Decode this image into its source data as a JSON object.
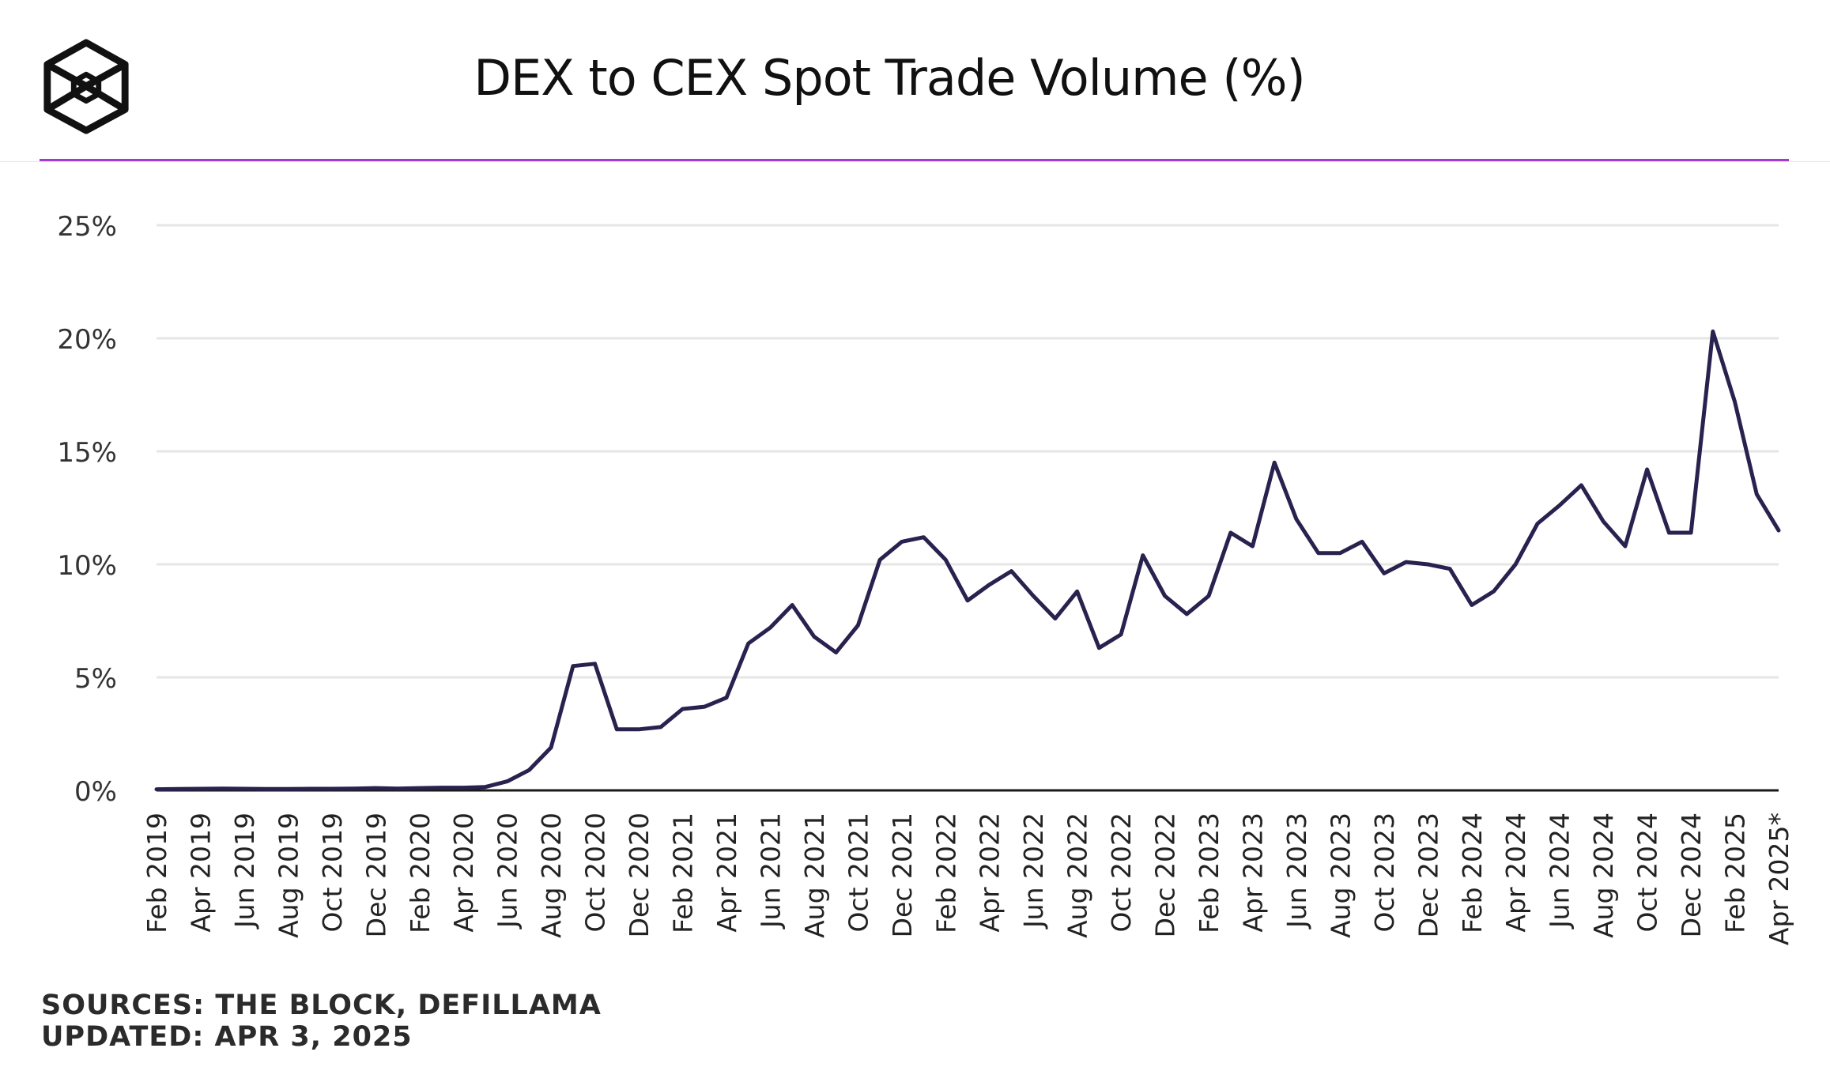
{
  "header": {
    "logo": "the-block-cube-logo",
    "title": "DEX to CEX Spot Trade Volume (%)"
  },
  "colors": {
    "accent_rule": "#a23bd3",
    "series_line": "#28224f",
    "grid": "#e6e6e6",
    "axis": "#1a1a1a"
  },
  "chart_data": {
    "type": "line",
    "title": "DEX to CEX Spot Trade Volume (%)",
    "xlabel": "",
    "ylabel": "",
    "ylim": [
      0,
      25
    ],
    "yticks": [
      0,
      5,
      10,
      15,
      20,
      25
    ],
    "ytick_labels": [
      "0%",
      "5%",
      "10%",
      "15%",
      "20%",
      "25%"
    ],
    "x": [
      "Feb 2019",
      "Mar 2019",
      "Apr 2019",
      "May 2019",
      "Jun 2019",
      "Jul 2019",
      "Aug 2019",
      "Sep 2019",
      "Oct 2019",
      "Nov 2019",
      "Dec 2019",
      "Jan 2020",
      "Feb 2020",
      "Mar 2020",
      "Apr 2020",
      "May 2020",
      "Jun 2020",
      "Jul 2020",
      "Aug 2020",
      "Sep 2020",
      "Oct 2020",
      "Nov 2020",
      "Dec 2020",
      "Jan 2021",
      "Feb 2021",
      "Mar 2021",
      "Apr 2021",
      "May 2021",
      "Jun 2021",
      "Jul 2021",
      "Aug 2021",
      "Sep 2021",
      "Oct 2021",
      "Nov 2021",
      "Dec 2021",
      "Jan 2022",
      "Feb 2022",
      "Mar 2022",
      "Apr 2022",
      "May 2022",
      "Jun 2022",
      "Jul 2022",
      "Aug 2022",
      "Sep 2022",
      "Oct 2022",
      "Nov 2022",
      "Dec 2022",
      "Jan 2023",
      "Feb 2023",
      "Mar 2023",
      "Apr 2023",
      "May 2023",
      "Jun 2023",
      "Jul 2023",
      "Aug 2023",
      "Sep 2023",
      "Oct 2023",
      "Nov 2023",
      "Dec 2023",
      "Jan 2024",
      "Feb 2024",
      "Mar 2024",
      "Apr 2024",
      "May 2024",
      "Jun 2024",
      "Jul 2024",
      "Aug 2024",
      "Sep 2024",
      "Oct 2024",
      "Nov 2024",
      "Dec 2024",
      "Jan 2025",
      "Feb 2025",
      "Mar 2025",
      "Apr 2025*"
    ],
    "xtick_labels": [
      "Feb 2019",
      "Apr 2019",
      "Jun 2019",
      "Aug 2019",
      "Oct 2019",
      "Dec 2019",
      "Feb 2020",
      "Apr 2020",
      "Jun 2020",
      "Aug 2020",
      "Oct 2020",
      "Dec 2020",
      "Feb 2021",
      "Apr 2021",
      "Jun 2021",
      "Aug 2021",
      "Oct 2021",
      "Dec 2021",
      "Feb 2022",
      "Apr 2022",
      "Jun 2022",
      "Aug 2022",
      "Oct 2022",
      "Dec 2022",
      "Feb 2023",
      "Apr 2023",
      "Jun 2023",
      "Aug 2023",
      "Oct 2023",
      "Dec 2023",
      "Feb 2024",
      "Apr 2024",
      "Jun 2024",
      "Aug 2024",
      "Oct 2024",
      "Dec 2024",
      "Feb 2025",
      "Apr 2025*"
    ],
    "series": [
      {
        "name": "DEX to CEX Spot Trade Volume (%)",
        "values": [
          0.05,
          0.06,
          0.07,
          0.08,
          0.07,
          0.06,
          0.06,
          0.07,
          0.07,
          0.08,
          0.1,
          0.08,
          0.1,
          0.12,
          0.12,
          0.15,
          0.4,
          0.9,
          1.9,
          5.5,
          5.6,
          2.7,
          2.7,
          2.8,
          3.6,
          3.7,
          4.1,
          6.5,
          7.2,
          8.2,
          6.8,
          6.1,
          7.3,
          10.2,
          11.0,
          11.2,
          10.2,
          8.4,
          9.1,
          9.7,
          8.6,
          7.6,
          8.8,
          6.3,
          6.9,
          10.4,
          8.6,
          7.8,
          8.6,
          11.4,
          10.8,
          14.5,
          12.0,
          10.5,
          10.5,
          11.0,
          9.6,
          10.1,
          10.0,
          9.8,
          8.2,
          8.8,
          10.0,
          11.8,
          12.6,
          13.5,
          11.9,
          10.8,
          14.2,
          11.4,
          11.4,
          20.3,
          17.2,
          13.1,
          11.5
        ]
      }
    ]
  },
  "footer": {
    "sources": "SOURCES: THE BLOCK, DEFILLAMA",
    "updated": "UPDATED: APR 3, 2025"
  }
}
